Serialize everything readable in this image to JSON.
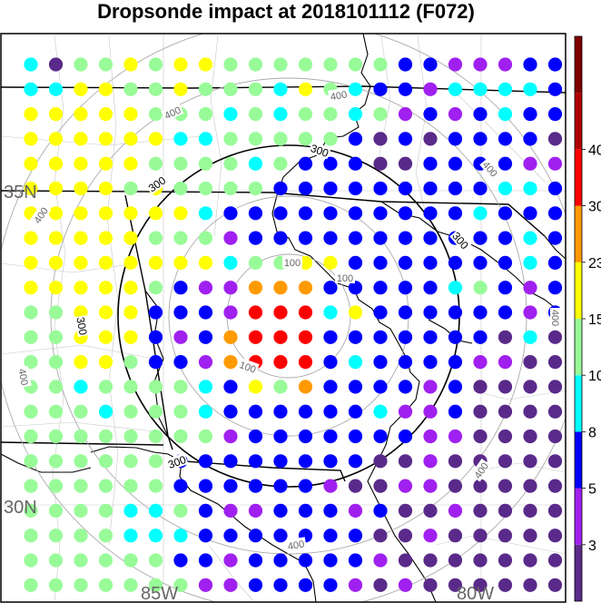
{
  "title": "Dropsonde impact at 2018101112 (F072)",
  "lat_labels": [
    "35N",
    "30N"
  ],
  "lon_labels": [
    "85W",
    "80W"
  ],
  "contours": {
    "inner": [
      "100",
      "100",
      "100"
    ],
    "black": [
      "300",
      "300",
      "300",
      "300",
      "300"
    ],
    "outer": [
      "400",
      "400",
      "400",
      "400",
      "400",
      "400",
      "400",
      "400"
    ]
  },
  "colorbar": {
    "colors": [
      "#5a2a8a",
      "#a020f0",
      "#0000ff",
      "#00ffff",
      "#98fb98",
      "#ffff00",
      "#ff9a00",
      "#ff0000",
      "#b00000",
      "#800000"
    ],
    "ticks": [
      "3",
      "5",
      "8",
      "10",
      "15",
      "23",
      "30",
      "40"
    ]
  },
  "chart_data": {
    "type": "scatter",
    "title": "Dropsonde impact at 2018101112 (F072)",
    "grid": true,
    "x_range": [
      "85W",
      "80W"
    ],
    "y_range": [
      "30N",
      "35N"
    ],
    "legend_placement": "right",
    "color_levels": [
      "3",
      "5",
      "8",
      "10",
      "15",
      "23",
      "30",
      "40"
    ],
    "rows": [
      "CDGGYGYYGGGGGGGBBPPPBB",
      "CCYYGGYGGGCYGCBBPCCCCB",
      "YYYYYGGGCGCGGCGPBPBCBB",
      "YYYYYYCCGGGGGBDBDBBBBD",
      "YYYYYGGGGCGBBBDDBBBBPP",
      "YYYYGYGGGGBBBBBBBBBCCB",
      "YYYYYYYCBBBBBBBBBBCBBB",
      "YYYYYGGGPBBBBBBBBBBBCB",
      "YYYYYYYYCGGYYBBBBBBBCB",
      "YYYYYGBPPOOOBBBBBCGBPB",
      "GGYYYBBBPRRRCYBBBBBBPB",
      "GGYYYBPBORRRBBBBBBBDCD",
      "GGYYGBBPORRRBCBBBBPPDD",
      "GGCGGGGCBYGOBBBBPBDDDD",
      "GGGCGGGCBBBBBBCPPBDDDD",
      "GGGGGGGGPBBBBBBBPPDDDD",
      "GGGGGGBBBBBBBBDDPDDDDD",
      "GGGGGGBBBBBBPDDPPDDDDD",
      "GGGGCCGBPPBBBPBDDPDDDD",
      "GGGGCCCBBBBBBBDDPDDDDD",
      "GGGGGGBBPBBBBBPDDDDDDD",
      "GGGGGGGPPBBBBPDPDDDDDD",
      "CCCGGGCCBBBBPDPDDPDDDD"
    ],
    "color_key": {
      "D": "<3",
      "P": "3-5",
      "B": "5-8",
      "C": "8-10",
      "G": "10-15",
      "Y": "15-23",
      "O": "23-30",
      "R": "30-40"
    }
  }
}
